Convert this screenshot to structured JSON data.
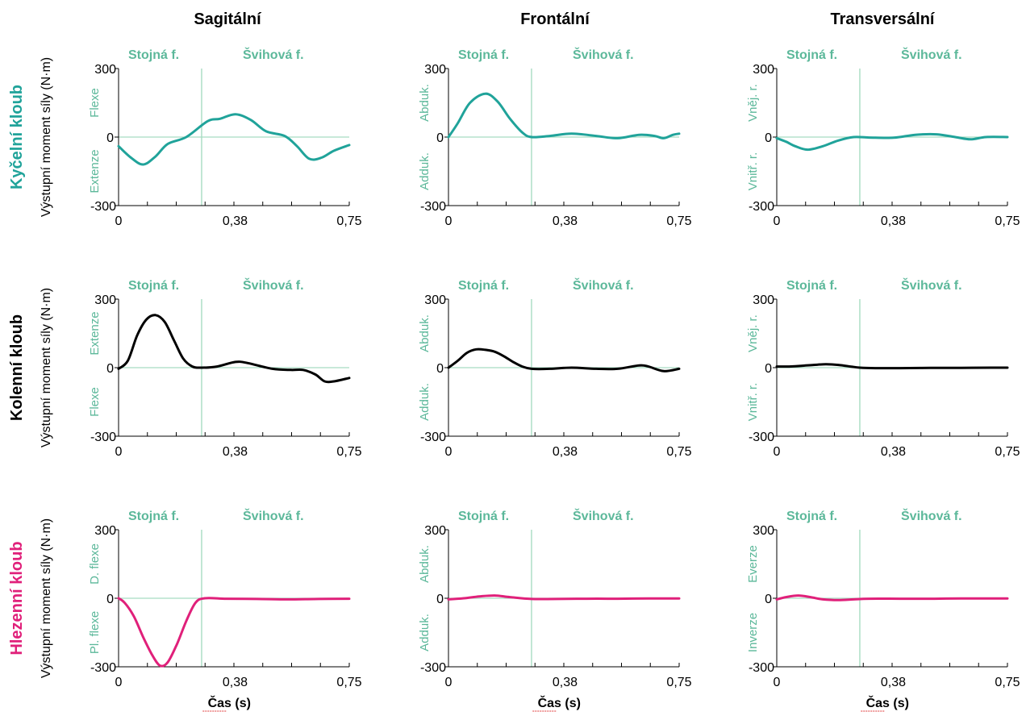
{
  "columns": [
    "Sagitální",
    "Frontální",
    "Transversální"
  ],
  "ylabel": "Výstupní moment síly (N·m)",
  "xlabel": "Čas (s)",
  "phase_labels": {
    "stance": "Stojná f.",
    "swing": "Švihová f."
  },
  "stance_end": 0.27,
  "colors": {
    "hip": "#20a39a",
    "knee": "#000000",
    "ankle": "#e0207a",
    "ref": "#a7dcc2",
    "phase": "#5cb89a"
  },
  "rows": [
    {
      "joint": "Kyčelní kloub",
      "color": "#20a39a"
    },
    {
      "joint": "Kolenní kloub",
      "color": "#000000"
    },
    {
      "joint": "Hlezenní kloub",
      "color": "#e0207a"
    }
  ],
  "chart_data": [
    {
      "type": "line",
      "row": 0,
      "col": 0,
      "title": "Sagitální",
      "ylabel": "Výstupní moment síly (N·m)",
      "x_ticks": [
        "0",
        "0,38",
        "0,75"
      ],
      "y_ticks": [
        "300",
        "0",
        "-300"
      ],
      "xlim": [
        0,
        0.75
      ],
      "ylim": [
        -300,
        300
      ],
      "dir_pos": "Flexe",
      "dir_neg": "Extenze",
      "series": [
        {
          "x": [
            0,
            0.04,
            0.08,
            0.12,
            0.16,
            0.22,
            0.29,
            0.33,
            0.38,
            0.43,
            0.48,
            0.54,
            0.58,
            0.62,
            0.66,
            0.7,
            0.75
          ],
          "y": [
            -40,
            -90,
            -120,
            -85,
            -30,
            0,
            70,
            80,
            100,
            75,
            25,
            5,
            -40,
            -95,
            -90,
            -60,
            -35
          ]
        }
      ]
    },
    {
      "type": "line",
      "row": 0,
      "col": 1,
      "title": "Frontální",
      "ylabel": "Výstupní moment síly (N·m)",
      "x_ticks": [
        "0",
        "0,38",
        "0,75"
      ],
      "y_ticks": [
        "300",
        "0",
        "-300"
      ],
      "xlim": [
        0,
        0.75
      ],
      "ylim": [
        -300,
        300
      ],
      "dir_pos": "Abduk.",
      "dir_neg": "Adduk.",
      "series": [
        {
          "x": [
            0,
            0.03,
            0.07,
            0.12,
            0.16,
            0.2,
            0.24,
            0.27,
            0.33,
            0.4,
            0.48,
            0.55,
            0.62,
            0.67,
            0.7,
            0.73,
            0.75
          ],
          "y": [
            0,
            60,
            150,
            190,
            155,
            80,
            20,
            0,
            5,
            15,
            5,
            -5,
            10,
            5,
            -5,
            10,
            15
          ]
        }
      ]
    },
    {
      "type": "line",
      "row": 0,
      "col": 2,
      "title": "Transversální",
      "ylabel": "Výstupní moment síly (N·m)",
      "x_ticks": [
        "0",
        "0,38",
        "0,75"
      ],
      "y_ticks": [
        "300",
        "0",
        "-300"
      ],
      "xlim": [
        0,
        0.75
      ],
      "ylim": [
        -300,
        300
      ],
      "dir_pos": "Vněj. r.",
      "dir_neg": "Vnitř. r.",
      "series": [
        {
          "x": [
            0,
            0.03,
            0.06,
            0.1,
            0.15,
            0.2,
            0.25,
            0.3,
            0.38,
            0.45,
            0.52,
            0.58,
            0.63,
            0.68,
            0.75
          ],
          "y": [
            -5,
            -20,
            -40,
            -55,
            -40,
            -15,
            0,
            -2,
            -3,
            10,
            12,
            0,
            -10,
            0,
            0
          ]
        }
      ]
    },
    {
      "type": "line",
      "row": 1,
      "col": 0,
      "title": "Sagitální",
      "ylabel": "Výstupní moment síly (N·m)",
      "x_ticks": [
        "0",
        "0,38",
        "0,75"
      ],
      "y_ticks": [
        "300",
        "0",
        "-300"
      ],
      "xlim": [
        0,
        0.75
      ],
      "ylim": [
        -300,
        300
      ],
      "dir_pos": "Extenze",
      "dir_neg": "Flexe",
      "series": [
        {
          "x": [
            0,
            0.03,
            0.06,
            0.09,
            0.12,
            0.15,
            0.18,
            0.21,
            0.24,
            0.27,
            0.32,
            0.38,
            0.42,
            0.5,
            0.56,
            0.6,
            0.64,
            0.67,
            0.7,
            0.75
          ],
          "y": [
            -5,
            30,
            140,
            210,
            230,
            200,
            120,
            40,
            5,
            0,
            5,
            25,
            20,
            -5,
            -10,
            -10,
            -30,
            -60,
            -60,
            -45
          ]
        }
      ]
    },
    {
      "type": "line",
      "row": 1,
      "col": 1,
      "title": "Frontální",
      "ylabel": "Výstupní moment síly (N·m)",
      "x_ticks": [
        "0",
        "0,38",
        "0,75"
      ],
      "y_ticks": [
        "300",
        "0",
        "-300"
      ],
      "xlim": [
        0,
        0.75
      ],
      "ylim": [
        -300,
        300
      ],
      "dir_pos": "Abduk.",
      "dir_neg": "Adduk.",
      "series": [
        {
          "x": [
            0,
            0.03,
            0.06,
            0.09,
            0.12,
            0.15,
            0.18,
            0.21,
            0.24,
            0.27,
            0.33,
            0.4,
            0.48,
            0.55,
            0.62,
            0.65,
            0.7,
            0.75
          ],
          "y": [
            0,
            30,
            65,
            80,
            78,
            70,
            50,
            25,
            5,
            -5,
            -5,
            0,
            -5,
            -5,
            10,
            5,
            -15,
            -5
          ]
        }
      ]
    },
    {
      "type": "line",
      "row": 1,
      "col": 2,
      "title": "Transversální",
      "ylabel": "Výstupní moment síly (N·m)",
      "x_ticks": [
        "0",
        "0,38",
        "0,75"
      ],
      "y_ticks": [
        "300",
        "0",
        "-300"
      ],
      "xlim": [
        0,
        0.75
      ],
      "ylim": [
        -300,
        300
      ],
      "dir_pos": "Vněj. r.",
      "dir_neg": "Vnitř. r.",
      "series": [
        {
          "x": [
            0,
            0.04,
            0.08,
            0.12,
            0.16,
            0.2,
            0.24,
            0.27,
            0.32,
            0.4,
            0.5,
            0.6,
            0.7,
            0.75
          ],
          "y": [
            5,
            5,
            8,
            12,
            15,
            12,
            5,
            0,
            -2,
            -2,
            -1,
            -1,
            0,
            0
          ]
        }
      ]
    },
    {
      "type": "line",
      "row": 2,
      "col": 0,
      "title": "Sagitální",
      "ylabel": "Výstupní moment síly (N·m)",
      "xlabel": "Čas (s)",
      "x_ticks": [
        "0",
        "0,38",
        "0,75"
      ],
      "y_ticks": [
        "300",
        "0",
        "-300"
      ],
      "xlim": [
        0,
        0.75
      ],
      "ylim": [
        -300,
        300
      ],
      "dir_pos": "D. flexe",
      "dir_neg": "Pl. flexe",
      "series": [
        {
          "x": [
            0,
            0.02,
            0.05,
            0.08,
            0.11,
            0.135,
            0.16,
            0.19,
            0.22,
            0.25,
            0.28,
            0.35,
            0.45,
            0.55,
            0.65,
            0.75
          ],
          "y": [
            0,
            -20,
            -80,
            -170,
            -250,
            -295,
            -280,
            -200,
            -100,
            -20,
            0,
            -2,
            -3,
            -5,
            -3,
            -2
          ]
        }
      ]
    },
    {
      "type": "line",
      "row": 2,
      "col": 1,
      "title": "Frontální",
      "ylabel": "Výstupní moment síly (N·m)",
      "xlabel": "Čas (s)",
      "x_ticks": [
        "0",
        "0,38",
        "0,75"
      ],
      "y_ticks": [
        "300",
        "0",
        "-300"
      ],
      "xlim": [
        0,
        0.75
      ],
      "ylim": [
        -300,
        300
      ],
      "dir_pos": "Abduk.",
      "dir_neg": "Adduk.",
      "series": [
        {
          "x": [
            0,
            0.05,
            0.1,
            0.15,
            0.2,
            0.27,
            0.35,
            0.45,
            0.55,
            0.65,
            0.75
          ],
          "y": [
            -5,
            0,
            8,
            12,
            5,
            -3,
            -3,
            -2,
            -2,
            -1,
            -1
          ]
        }
      ]
    },
    {
      "type": "line",
      "row": 2,
      "col": 2,
      "title": "Transversální",
      "ylabel": "Výstupní moment síly (N·m)",
      "xlabel": "Čas (s)",
      "x_ticks": [
        "0",
        "0,38",
        "0,75"
      ],
      "y_ticks": [
        "300",
        "0",
        "-300"
      ],
      "xlim": [
        0,
        0.75
      ],
      "ylim": [
        -300,
        300
      ],
      "dir_pos": "Everze",
      "dir_neg": "Inverze",
      "series": [
        {
          "x": [
            0,
            0.03,
            0.07,
            0.11,
            0.15,
            0.2,
            0.25,
            0.3,
            0.4,
            0.5,
            0.6,
            0.75
          ],
          "y": [
            -5,
            5,
            12,
            5,
            -5,
            -8,
            -5,
            -2,
            -2,
            -2,
            -1,
            -1
          ]
        }
      ]
    }
  ]
}
